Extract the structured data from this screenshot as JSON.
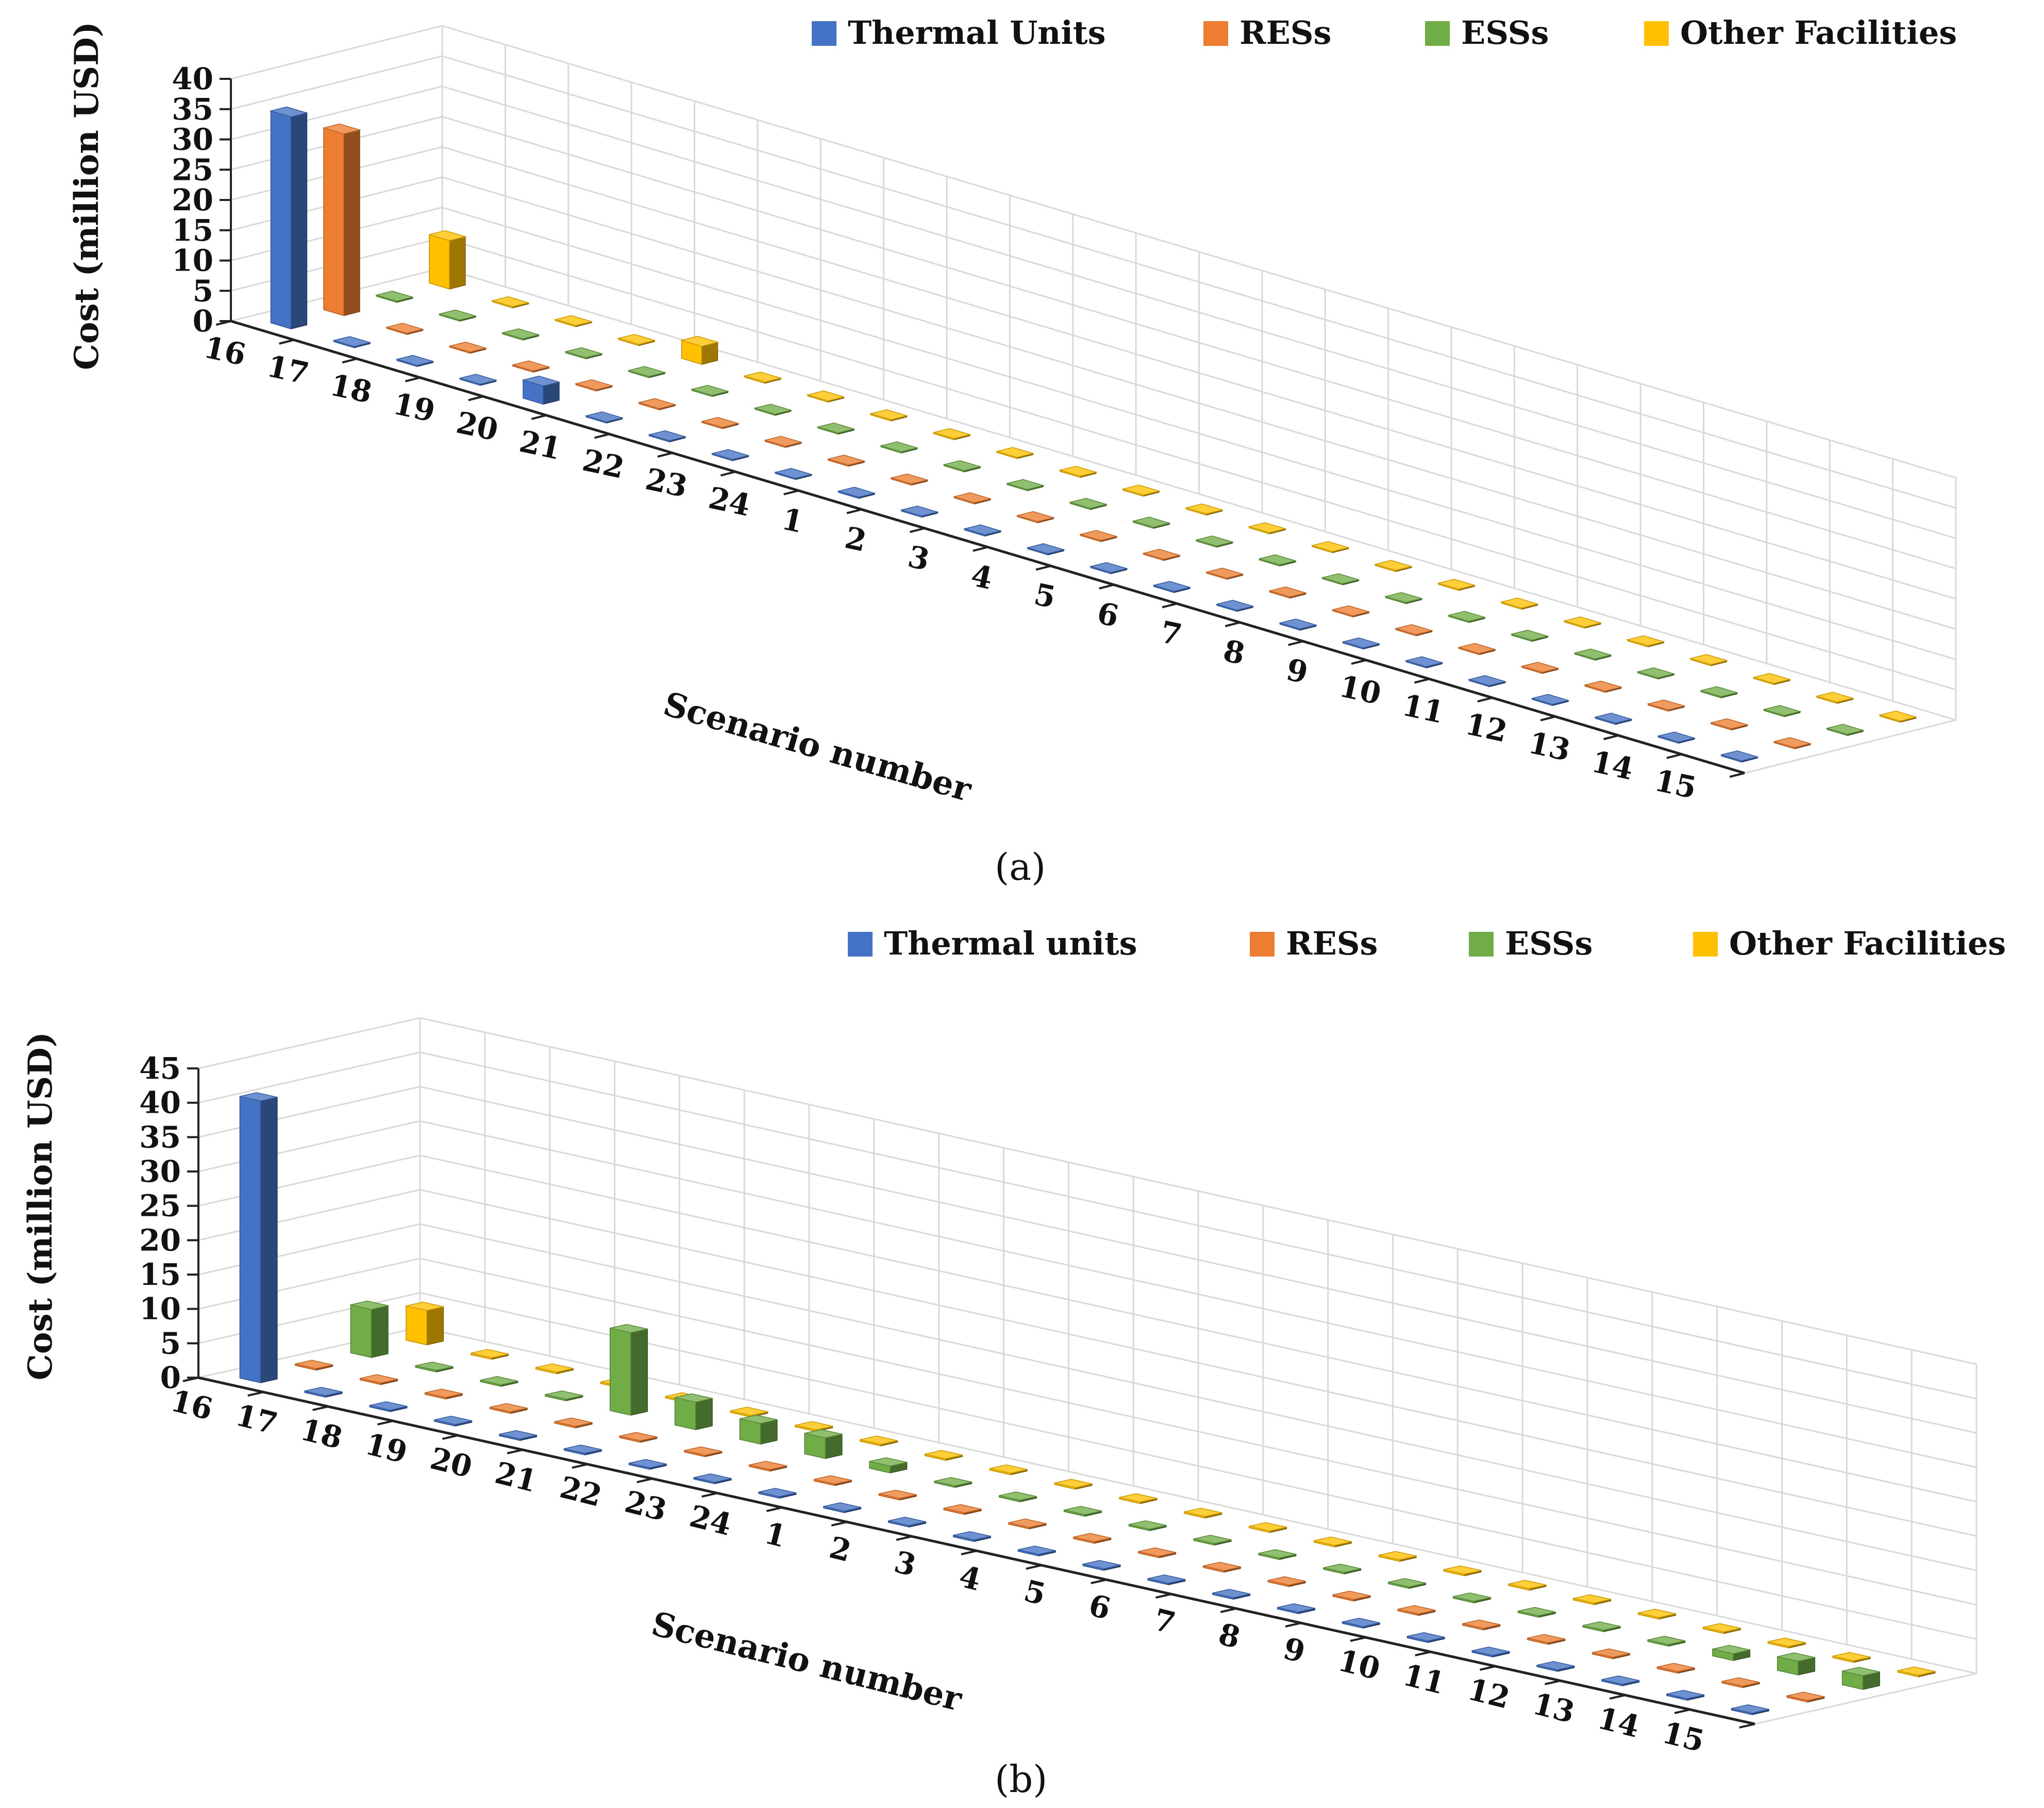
{
  "chart_data": [
    {
      "type": "bar",
      "panel": "(a)",
      "xlabel": "Scenario number",
      "ylabel": "Cost (million USD)",
      "ylim": [
        0,
        40
      ],
      "yticks": [
        "0",
        "5",
        "10",
        "15",
        "20",
        "25",
        "30",
        "35",
        "40"
      ],
      "categories": [
        "16",
        "17",
        "18",
        "19",
        "20",
        "21",
        "22",
        "23",
        "24",
        "1",
        "2",
        "3",
        "4",
        "5",
        "6",
        "7",
        "8",
        "9",
        "10",
        "11",
        "12",
        "13",
        "14",
        "15"
      ],
      "legend_position": "top-right",
      "grid": true,
      "series": [
        {
          "name": "Thermal Units",
          "color": "#4472C4",
          "values": [
            35,
            0,
            0,
            0,
            3,
            0,
            0,
            0,
            0,
            0,
            0,
            0,
            0,
            0,
            0,
            0,
            0,
            0,
            0,
            0,
            0,
            0,
            0,
            0
          ]
        },
        {
          "name": "RESs",
          "color": "#ED7D31",
          "values": [
            30,
            0,
            0,
            0,
            0,
            0,
            0,
            0,
            0,
            0,
            0,
            0,
            0,
            0,
            0,
            0,
            0,
            0,
            0,
            0,
            0,
            0,
            0,
            0
          ]
        },
        {
          "name": "ESSs",
          "color": "#70AD47",
          "values": [
            0,
            0,
            0,
            0,
            0,
            0,
            0,
            0,
            0,
            0,
            0,
            0,
            0,
            0,
            0,
            0,
            0,
            0,
            0,
            0,
            0,
            0,
            0,
            0
          ]
        },
        {
          "name": "Other Facilities",
          "color": "#FFC000",
          "values": [
            8,
            0,
            0,
            0,
            3,
            0,
            0,
            0,
            0,
            0,
            0,
            0,
            0,
            0,
            0,
            0,
            0,
            0,
            0,
            0,
            0,
            0,
            0,
            0
          ]
        }
      ]
    },
    {
      "type": "bar",
      "panel": "(b)",
      "xlabel": "Scenario number",
      "ylabel": "Cost (million USD)",
      "ylim": [
        0,
        45
      ],
      "yticks": [
        "0",
        "5",
        "10",
        "15",
        "20",
        "25",
        "30",
        "35",
        "40",
        "45"
      ],
      "categories": [
        "16",
        "17",
        "18",
        "19",
        "20",
        "21",
        "22",
        "23",
        "24",
        "1",
        "2",
        "3",
        "4",
        "5",
        "6",
        "7",
        "8",
        "9",
        "10",
        "11",
        "12",
        "13",
        "14",
        "15"
      ],
      "legend_position": "top-right",
      "grid": true,
      "series": [
        {
          "name": "Thermal units",
          "color": "#4472C4",
          "values": [
            41,
            0,
            0,
            0,
            0,
            0,
            0,
            0,
            0,
            0,
            0,
            0,
            0,
            0,
            0,
            0,
            0,
            0,
            0,
            0,
            0,
            0,
            0,
            0
          ]
        },
        {
          "name": "RESs",
          "color": "#ED7D31",
          "values": [
            0,
            0,
            0,
            0,
            0,
            0,
            0,
            0,
            0,
            0,
            0,
            0,
            0,
            0,
            0,
            0,
            0,
            0,
            0,
            0,
            0,
            0,
            0,
            0
          ]
        },
        {
          "name": "ESSs",
          "color": "#70AD47",
          "values": [
            7,
            0,
            0,
            0,
            12,
            4,
            3,
            3,
            1,
            0,
            0,
            0,
            0,
            0,
            0,
            0,
            0,
            0,
            0,
            0,
            0,
            1,
            2,
            2
          ]
        },
        {
          "name": "Other Facilities",
          "color": "#FFC000",
          "values": [
            5,
            0,
            0,
            0,
            0,
            0,
            0,
            0,
            0,
            0,
            0,
            0,
            0,
            0,
            0,
            0,
            0,
            0,
            0,
            0,
            0,
            0,
            0,
            0
          ]
        }
      ]
    }
  ],
  "captions": {
    "a": "(a)",
    "b": "(b)"
  }
}
